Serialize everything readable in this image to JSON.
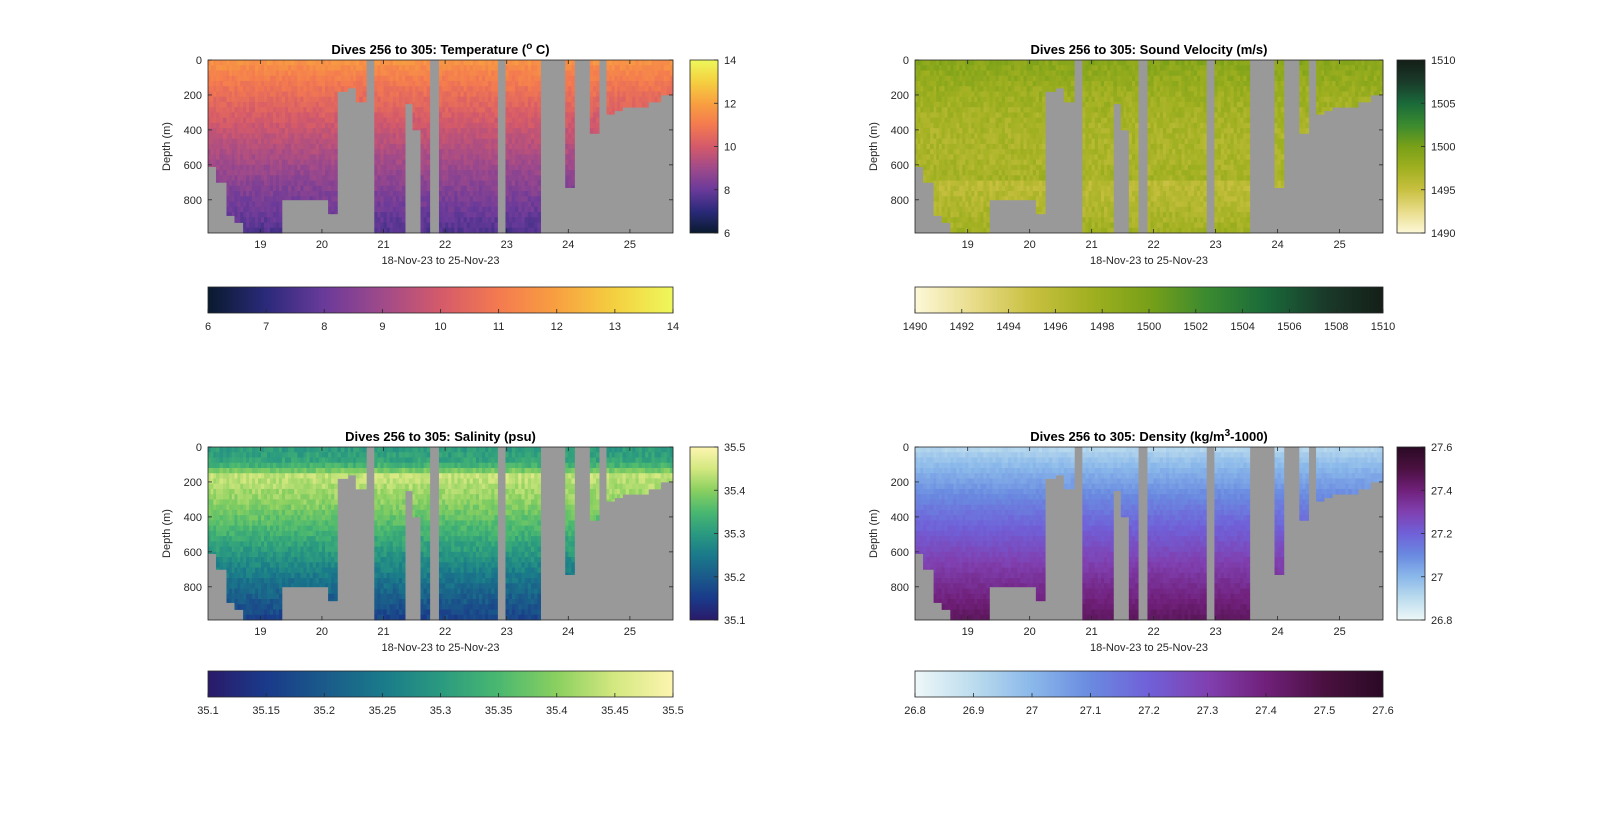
{
  "chart_data": [
    {
      "type": "heatmap",
      "title": "Dives 256 to 305: Temperature (",
      "title_sup": "o",
      "title_tail": " C)",
      "xlabel": "18-Nov-23 to 25-Nov-23",
      "ylabel": "Depth (m)",
      "x_ticks": [
        "19",
        "20",
        "21",
        "22",
        "23",
        "24",
        "25"
      ],
      "x_values": [
        19,
        20,
        21,
        22,
        23,
        24,
        25
      ],
      "xlim": [
        18.15,
        25.7
      ],
      "y_ticks": [
        "0",
        "200",
        "400",
        "600",
        "800"
      ],
      "y_values": [
        0,
        200,
        400,
        600,
        800
      ],
      "ylim": [
        0,
        990
      ],
      "colorbar_vertical": {
        "ticks": [
          "6",
          "8",
          "10",
          "12",
          "14"
        ],
        "values": [
          6,
          8,
          10,
          12,
          14
        ]
      },
      "colorbar_horizontal": {
        "ticks": [
          "6",
          "7",
          "8",
          "9",
          "10",
          "11",
          "12",
          "13",
          "14"
        ],
        "values": [
          6,
          7,
          8,
          9,
          10,
          11,
          12,
          13,
          14
        ]
      },
      "clim": [
        6,
        14
      ],
      "colormap": [
        "#0a1a2e",
        "#2a2a7a",
        "#6a3a9a",
        "#a04a8a",
        "#d45a6a",
        "#f47a50",
        "#f8a040",
        "#f4d040",
        "#eef85a"
      ],
      "surface_value": 11.8,
      "deep_value": 7.6,
      "data_pattern": "depth-banded",
      "noise": 0.25,
      "nodata_color": "#999999"
    },
    {
      "type": "heatmap",
      "title": "Dives 256 to 305: Sound Velocity (m/s)",
      "xlabel": "18-Nov-23 to 25-Nov-23",
      "ylabel": "Depth (m)",
      "x_ticks": [
        "19",
        "20",
        "21",
        "22",
        "23",
        "24",
        "25"
      ],
      "x_values": [
        19,
        20,
        21,
        22,
        23,
        24,
        25
      ],
      "xlim": [
        18.15,
        25.7
      ],
      "y_ticks": [
        "0",
        "200",
        "400",
        "600",
        "800"
      ],
      "y_values": [
        0,
        200,
        400,
        600,
        800
      ],
      "ylim": [
        0,
        990
      ],
      "colorbar_vertical": {
        "ticks": [
          "1490",
          "1495",
          "1500",
          "1505",
          "1510"
        ],
        "values": [
          1490,
          1495,
          1500,
          1505,
          1510
        ]
      },
      "colorbar_horizontal": {
        "ticks": [
          "1490",
          "1492",
          "1494",
          "1496",
          "1498",
          "1500",
          "1502",
          "1504",
          "1506",
          "1508",
          "1510"
        ],
        "values": [
          1490,
          1492,
          1494,
          1496,
          1498,
          1500,
          1502,
          1504,
          1506,
          1508,
          1510
        ]
      },
      "clim": [
        1490,
        1510
      ],
      "colormap": [
        "#fdf8d8",
        "#e8dc8a",
        "#c8c040",
        "#a0b020",
        "#78a018",
        "#3a8a30",
        "#1a6a3a",
        "#1a3a2a",
        "#141f18"
      ],
      "surface_value": 1498.5,
      "deep_value": 1498.8,
      "data_pattern": "depth-banded",
      "noise": 0.9,
      "nodata_color": "#999999"
    },
    {
      "type": "heatmap",
      "title": "Dives 256 to 305: Salinity (psu)",
      "xlabel": "18-Nov-23 to 25-Nov-23",
      "ylabel": "Depth (m)",
      "x_ticks": [
        "19",
        "20",
        "21",
        "22",
        "23",
        "24",
        "25"
      ],
      "x_values": [
        19,
        20,
        21,
        22,
        23,
        24,
        25
      ],
      "xlim": [
        18.15,
        25.7
      ],
      "y_ticks": [
        "0",
        "200",
        "400",
        "600",
        "800"
      ],
      "y_values": [
        0,
        200,
        400,
        600,
        800
      ],
      "ylim": [
        0,
        990
      ],
      "colorbar_vertical": {
        "ticks": [
          "35.1",
          "35.2",
          "35.3",
          "35.4",
          "35.5"
        ],
        "values": [
          35.1,
          35.2,
          35.3,
          35.4,
          35.5
        ]
      },
      "colorbar_horizontal": {
        "ticks": [
          "35.1",
          "35.15",
          "35.2",
          "35.25",
          "35.3",
          "35.35",
          "35.4",
          "35.45",
          "35.5"
        ],
        "values": [
          35.1,
          35.15,
          35.2,
          35.25,
          35.3,
          35.35,
          35.4,
          35.45,
          35.5
        ]
      },
      "clim": [
        35.1,
        35.5
      ],
      "colormap": [
        "#2a1a6a",
        "#1a3a8a",
        "#1a5a8a",
        "#1a7a8a",
        "#2a9a80",
        "#4ab870",
        "#8ad060",
        "#d4e880",
        "#fdf5b0"
      ],
      "data_pattern": "salinity-profile",
      "noise": 0.02,
      "nodata_color": "#999999"
    },
    {
      "type": "heatmap",
      "title": "Dives 256 to 305: Density (kg/m",
      "title_sup": "3",
      "title_tail": "-1000)",
      "xlabel": "18-Nov-23 to 25-Nov-23",
      "ylabel": "Depth (m)",
      "x_ticks": [
        "19",
        "20",
        "21",
        "22",
        "23",
        "24",
        "25"
      ],
      "x_values": [
        19,
        20,
        21,
        22,
        23,
        24,
        25
      ],
      "xlim": [
        18.15,
        25.7
      ],
      "y_ticks": [
        "0",
        "200",
        "400",
        "600",
        "800"
      ],
      "y_values": [
        0,
        200,
        400,
        600,
        800
      ],
      "ylim": [
        0,
        990
      ],
      "colorbar_vertical": {
        "ticks": [
          "26.8",
          "27",
          "27.2",
          "27.4",
          "27.6"
        ],
        "values": [
          26.8,
          27,
          27.2,
          27.4,
          27.6
        ]
      },
      "colorbar_horizontal": {
        "ticks": [
          "26.8",
          "26.9",
          "27",
          "27.1",
          "27.2",
          "27.3",
          "27.4",
          "27.5",
          "27.6"
        ],
        "values": [
          26.8,
          26.9,
          27,
          27.1,
          27.2,
          27.3,
          27.4,
          27.5,
          27.6
        ]
      },
      "clim": [
        26.8,
        27.6
      ],
      "colormap": [
        "#eef8f8",
        "#bcdcee",
        "#8ab8ea",
        "#6a8ae0",
        "#7060d8",
        "#8040b0",
        "#70207a",
        "#4a1040",
        "#2a0a24"
      ],
      "surface_value": 26.9,
      "deep_value": 27.45,
      "data_pattern": "depth-banded",
      "noise": 0.015,
      "nodata_color": "#999999"
    }
  ],
  "dives": {
    "x": [
      18.15,
      18.3,
      18.45,
      18.6,
      18.75,
      18.9,
      19.05,
      19.2,
      19.35,
      19.5,
      19.65,
      19.8,
      19.95,
      20.1,
      20.25,
      20.4,
      20.55,
      20.7,
      20.85,
      21.0,
      21.15,
      21.3,
      21.45,
      21.6,
      21.75,
      21.9,
      22.05,
      22.2,
      22.35,
      22.5,
      22.65,
      22.8,
      22.95,
      23.1,
      23.25,
      23.4,
      23.55,
      23.7,
      23.85,
      24.0,
      24.15,
      24.3,
      24.45,
      24.6,
      24.75,
      24.9,
      25.05,
      25.2,
      25.35,
      25.5,
      25.7
    ],
    "segments": [
      {
        "start": 18.15,
        "end": 18.28,
        "depth": 610
      },
      {
        "start": 18.28,
        "end": 18.45,
        "depth": 700
      },
      {
        "start": 18.45,
        "end": 18.58,
        "depth": 890
      },
      {
        "start": 18.58,
        "end": 18.72,
        "depth": 930
      },
      {
        "start": 18.72,
        "end": 19.35,
        "depth": 990
      },
      {
        "start": 19.35,
        "end": 20.1,
        "depth": 800
      },
      {
        "start": 20.1,
        "end": 20.25,
        "depth": 880
      },
      {
        "start": 20.25,
        "end": 20.42,
        "depth": 180
      },
      {
        "start": 20.42,
        "end": 20.55,
        "depth": 160
      },
      {
        "start": 20.55,
        "end": 20.72,
        "depth": 240
      },
      {
        "start": 20.72,
        "end": 20.85,
        "depth": 0
      },
      {
        "start": 20.85,
        "end": 21.35,
        "depth": 990
      },
      {
        "start": 21.35,
        "end": 21.47,
        "depth": 250
      },
      {
        "start": 21.47,
        "end": 21.6,
        "depth": 400
      },
      {
        "start": 21.6,
        "end": 21.75,
        "depth": 990
      },
      {
        "start": 21.75,
        "end": 21.9,
        "depth": 0
      },
      {
        "start": 21.9,
        "end": 22.85,
        "depth": 990
      },
      {
        "start": 22.85,
        "end": 22.98,
        "depth": 0
      },
      {
        "start": 22.98,
        "end": 23.55,
        "depth": 990
      },
      {
        "start": 23.55,
        "end": 23.95,
        "depth": 0
      },
      {
        "start": 23.95,
        "end": 24.1,
        "depth": 730
      },
      {
        "start": 24.1,
        "end": 24.35,
        "depth": 0
      },
      {
        "start": 24.35,
        "end": 24.5,
        "depth": 420
      },
      {
        "start": 24.5,
        "end": 24.62,
        "depth": 0
      },
      {
        "start": 24.62,
        "end": 24.75,
        "depth": 310
      },
      {
        "start": 24.75,
        "end": 24.88,
        "depth": 290
      },
      {
        "start": 24.88,
        "end": 25.3,
        "depth": 270
      },
      {
        "start": 25.3,
        "end": 25.5,
        "depth": 240
      },
      {
        "start": 25.5,
        "end": 25.7,
        "depth": 200
      }
    ]
  }
}
